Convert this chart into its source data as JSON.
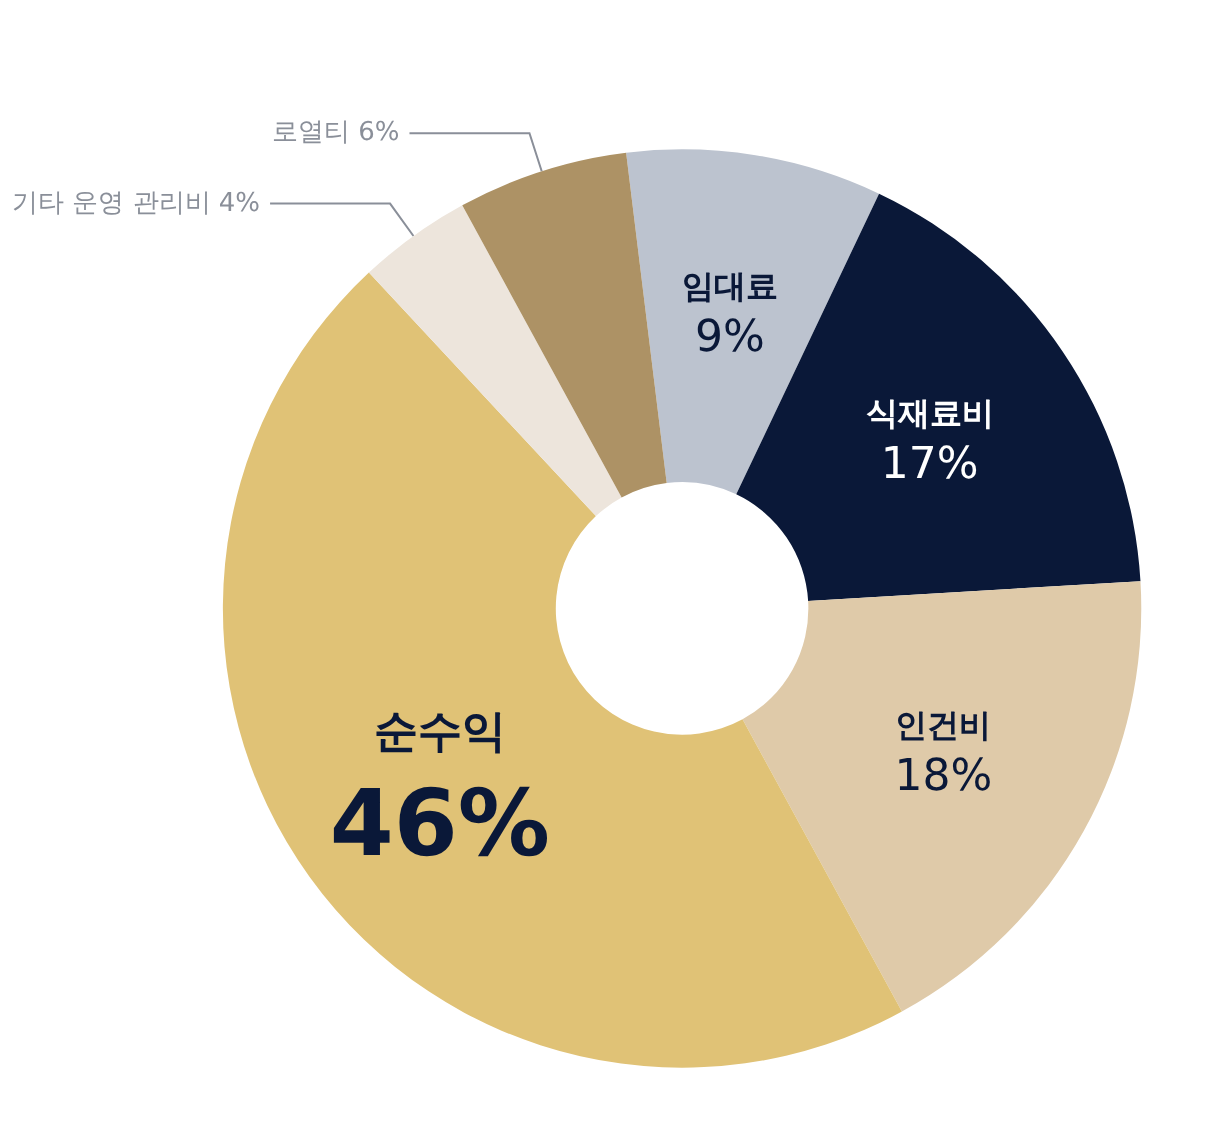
{
  "chart_data": {
    "type": "donut",
    "categories": [
      "임대료",
      "식재료비",
      "인건비",
      "순수익",
      "기타 운영 관리비",
      "로열티"
    ],
    "values": [
      9,
      17,
      18,
      46,
      4,
      6
    ],
    "colors": [
      "#bcc3cf",
      "#0a1838",
      "#dfcaa9",
      "#e0c276",
      "#ede5dc",
      "#ad9265"
    ],
    "value_labels": [
      "9%",
      "17%",
      "18%",
      "46%",
      "4%",
      "6%"
    ],
    "legend": false
  }
}
